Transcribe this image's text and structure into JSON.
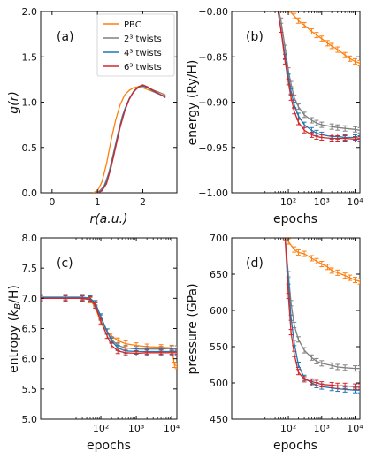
{
  "colors": {
    "PBC": "#ff7f0e",
    "tw2": "#808080",
    "tw4": "#1f77b4",
    "tw6": "#d62728"
  },
  "chart_data": [
    {
      "id": "a",
      "type": "line",
      "panel_label": "(a)",
      "xlabel": "r(a.u.)",
      "ylabel": "g(r)",
      "xlim": [
        -0.25,
        2.75
      ],
      "ylim": [
        0.0,
        2.0
      ],
      "xticks": [
        0,
        1,
        2
      ],
      "xtick_labels": [
        "0",
        "1",
        "2"
      ],
      "yticks": [
        0.0,
        0.5,
        1.0,
        1.5,
        2.0
      ],
      "ytick_labels": [
        "0.0",
        "0.5",
        "1.0",
        "1.5",
        "2.0"
      ],
      "legend": {
        "position": "top-right",
        "entries": [
          {
            "series": "PBC",
            "label": "PBC"
          },
          {
            "series": "tw2",
            "label": "2³ twists"
          },
          {
            "series": "tw4",
            "label": "4³ twists"
          },
          {
            "series": "tw6",
            "label": "6³ twists"
          }
        ]
      },
      "series": [
        {
          "key": "PBC",
          "x": [
            0.9,
            1.0,
            1.1,
            1.2,
            1.3,
            1.4,
            1.5,
            1.6,
            1.7,
            1.8,
            1.9,
            2.0,
            2.1,
            2.2,
            2.3,
            2.4,
            2.5
          ],
          "y": [
            0,
            0.02,
            0.12,
            0.32,
            0.58,
            0.8,
            0.97,
            1.08,
            1.13,
            1.16,
            1.17,
            1.16,
            1.14,
            1.12,
            1.1,
            1.08,
            1.07
          ]
        },
        {
          "key": "tw2",
          "x": [
            0.95,
            1.05,
            1.15,
            1.25,
            1.35,
            1.45,
            1.55,
            1.65,
            1.75,
            1.85,
            1.95,
            2.05,
            2.15,
            2.25,
            2.35,
            2.45,
            2.5
          ],
          "y": [
            0,
            0.02,
            0.08,
            0.22,
            0.43,
            0.65,
            0.85,
            0.98,
            1.08,
            1.14,
            1.18,
            1.17,
            1.15,
            1.13,
            1.11,
            1.09,
            1.08
          ]
        },
        {
          "key": "tw4",
          "x": [
            1.0,
            1.1,
            1.2,
            1.3,
            1.4,
            1.5,
            1.6,
            1.7,
            1.8,
            1.9,
            2.0,
            2.1,
            2.2,
            2.3,
            2.4,
            2.5
          ],
          "y": [
            0,
            0.03,
            0.12,
            0.3,
            0.52,
            0.74,
            0.92,
            1.04,
            1.12,
            1.17,
            1.18,
            1.16,
            1.13,
            1.1,
            1.08,
            1.06
          ]
        },
        {
          "key": "tw6",
          "x": [
            1.0,
            1.1,
            1.2,
            1.3,
            1.4,
            1.5,
            1.6,
            1.7,
            1.8,
            1.9,
            2.0,
            2.1,
            2.2,
            2.3,
            2.4,
            2.5
          ],
          "y": [
            0,
            0.02,
            0.1,
            0.28,
            0.5,
            0.72,
            0.9,
            1.03,
            1.12,
            1.17,
            1.19,
            1.17,
            1.14,
            1.11,
            1.08,
            1.05
          ]
        }
      ]
    },
    {
      "id": "b",
      "type": "line",
      "panel_label": "(b)",
      "xlabel": "epochs",
      "ylabel": "energy (Ry/H)",
      "xscale": "log",
      "xlim": [
        2,
        14000
      ],
      "ylim": [
        -1.0,
        -0.8
      ],
      "xticks": [
        100,
        1000,
        10000
      ],
      "xtick_labels": [
        "10²",
        "10³",
        "10⁴"
      ],
      "yticks": [
        -1.0,
        -0.95,
        -0.9,
        -0.85,
        -0.8
      ],
      "ytick_labels": [
        "−1.00",
        "−0.95",
        "−0.90",
        "−0.85",
        "−0.80"
      ],
      "series": [
        {
          "key": "PBC",
          "x": [
            50,
            100,
            150,
            200,
            300,
            500,
            700,
            1000,
            1500,
            2000,
            3000,
            5000,
            7000,
            10000,
            14000
          ],
          "y": [
            -0.78,
            -0.798,
            -0.805,
            -0.81,
            -0.815,
            -0.822,
            -0.826,
            -0.83,
            -0.835,
            -0.838,
            -0.842,
            -0.848,
            -0.852,
            -0.855,
            -0.857
          ]
        },
        {
          "key": "tw2",
          "x": [
            40,
            60,
            80,
            100,
            120,
            150,
            200,
            300,
            500,
            700,
            1000,
            2000,
            3000,
            5000,
            10000,
            14000
          ],
          "y": [
            -0.78,
            -0.81,
            -0.84,
            -0.865,
            -0.88,
            -0.895,
            -0.905,
            -0.914,
            -0.92,
            -0.923,
            -0.925,
            -0.927,
            -0.928,
            -0.929,
            -0.93,
            -0.931
          ]
        },
        {
          "key": "tw4",
          "x": [
            40,
            60,
            80,
            100,
            120,
            150,
            200,
            300,
            500,
            700,
            1000,
            2000,
            3000,
            5000,
            10000,
            14000
          ],
          "y": [
            -0.78,
            -0.82,
            -0.85,
            -0.872,
            -0.888,
            -0.903,
            -0.915,
            -0.925,
            -0.931,
            -0.934,
            -0.936,
            -0.938,
            -0.938,
            -0.939,
            -0.939,
            -0.94
          ]
        },
        {
          "key": "tw6",
          "x": [
            40,
            60,
            80,
            100,
            120,
            150,
            200,
            300,
            500,
            700,
            1000,
            2000,
            3000,
            5000,
            10000,
            14000
          ],
          "y": [
            -0.78,
            -0.82,
            -0.855,
            -0.878,
            -0.895,
            -0.91,
            -0.922,
            -0.931,
            -0.936,
            -0.938,
            -0.939,
            -0.94,
            -0.94,
            -0.94,
            -0.941,
            -0.941
          ]
        }
      ]
    },
    {
      "id": "c",
      "type": "line",
      "panel_label": "(c)",
      "xlabel": "epochs",
      "ylabel": "entropy (k_B/H)",
      "xscale": "log",
      "xlim": [
        2,
        14000
      ],
      "ylim": [
        5.0,
        8.0
      ],
      "xticks": [
        100,
        1000,
        10000
      ],
      "xtick_labels": [
        "10²",
        "10³",
        "10⁴"
      ],
      "yticks": [
        5.0,
        5.5,
        6.0,
        6.5,
        7.0,
        7.5,
        8.0
      ],
      "ytick_labels": [
        "5.0",
        "5.5",
        "6.0",
        "6.5",
        "7.0",
        "7.5",
        "8.0"
      ],
      "series": [
        {
          "key": "PBC",
          "x": [
            2,
            10,
            30,
            50,
            70,
            100,
            150,
            200,
            300,
            500,
            1000,
            2000,
            5000,
            10000,
            12000,
            14000
          ],
          "y": [
            7.0,
            7.0,
            7.0,
            6.97,
            6.85,
            6.6,
            6.45,
            6.38,
            6.3,
            6.25,
            6.22,
            6.2,
            6.19,
            6.18,
            5.9,
            5.88
          ]
        },
        {
          "key": "tw2",
          "x": [
            2,
            10,
            30,
            50,
            70,
            100,
            150,
            200,
            300,
            500,
            1000,
            2000,
            5000,
            10000,
            14000
          ],
          "y": [
            7.0,
            7.0,
            7.0,
            6.99,
            6.9,
            6.68,
            6.45,
            6.32,
            6.22,
            6.18,
            6.16,
            6.16,
            6.16,
            6.17,
            6.17
          ]
        },
        {
          "key": "tw4",
          "x": [
            2,
            10,
            30,
            50,
            70,
            100,
            150,
            200,
            300,
            500,
            1000,
            2000,
            5000,
            10000,
            14000
          ],
          "y": [
            7.02,
            7.02,
            7.02,
            7.0,
            6.92,
            6.7,
            6.45,
            6.3,
            6.18,
            6.13,
            6.12,
            6.12,
            6.12,
            6.12,
            6.12
          ]
        },
        {
          "key": "tw6",
          "x": [
            2,
            10,
            30,
            50,
            70,
            100,
            150,
            200,
            300,
            500,
            1000,
            2000,
            5000,
            10000,
            14000
          ],
          "y": [
            7.0,
            7.0,
            7.0,
            6.98,
            6.88,
            6.62,
            6.38,
            6.22,
            6.13,
            6.1,
            6.09,
            6.1,
            6.1,
            6.1,
            6.1
          ]
        }
      ]
    },
    {
      "id": "d",
      "type": "line",
      "panel_label": "(d)",
      "xlabel": "epochs",
      "ylabel": "pressure (GPa)",
      "xscale": "log",
      "xlim": [
        2,
        14000
      ],
      "ylim": [
        450,
        700
      ],
      "xticks": [
        100,
        1000,
        10000
      ],
      "xtick_labels": [
        "10²",
        "10³",
        "10⁴"
      ],
      "yticks": [
        450,
        500,
        550,
        600,
        650,
        700
      ],
      "ytick_labels": [
        "450",
        "500",
        "550",
        "600",
        "650",
        "700"
      ],
      "series": [
        {
          "key": "PBC",
          "x": [
            80,
            100,
            150,
            200,
            300,
            500,
            700,
            1000,
            1500,
            2000,
            3000,
            5000,
            7000,
            10000,
            14000
          ],
          "y": [
            720,
            695,
            684,
            680,
            678,
            672,
            668,
            664,
            660,
            655,
            652,
            648,
            645,
            642,
            640
          ]
        },
        {
          "key": "tw2",
          "x": [
            80,
            100,
            120,
            150,
            200,
            300,
            500,
            700,
            1000,
            2000,
            3000,
            5000,
            10000,
            14000
          ],
          "y": [
            700,
            650,
            610,
            580,
            560,
            545,
            535,
            530,
            527,
            524,
            522,
            521,
            520,
            520
          ]
        },
        {
          "key": "tw4",
          "x": [
            80,
            100,
            120,
            150,
            200,
            300,
            500,
            700,
            1000,
            2000,
            3000,
            5000,
            10000,
            14000
          ],
          "y": [
            700,
            640,
            590,
            555,
            525,
            507,
            500,
            497,
            495,
            493,
            492,
            491,
            490,
            490
          ]
        },
        {
          "key": "tw6",
          "x": [
            80,
            100,
            120,
            150,
            200,
            300,
            500,
            700,
            1000,
            2000,
            3000,
            5000,
            10000,
            14000
          ],
          "y": [
            700,
            620,
            570,
            540,
            515,
            505,
            502,
            500,
            498,
            497,
            496,
            496,
            495,
            495
          ]
        }
      ]
    }
  ]
}
